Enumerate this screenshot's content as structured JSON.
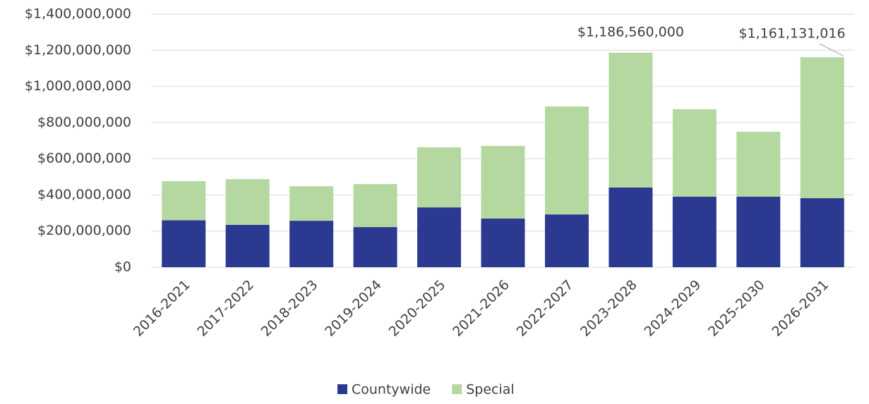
{
  "chart_data": {
    "type": "stacked_bar",
    "categories": [
      "2016-2021",
      "2017-2022",
      "2018-2023",
      "2019-2024",
      "2020-2025",
      "2021-2026",
      "2022-2027",
      "2023-2028",
      "2024-2029",
      "2025-2030",
      "2026-2031"
    ],
    "series": [
      {
        "name": "Countywide",
        "color": "#2b3990",
        "values": [
          260000000,
          234000000,
          257000000,
          222000000,
          331000000,
          269000000,
          292000000,
          441000000,
          390000000,
          390000000,
          382000000
        ]
      },
      {
        "name": "Special",
        "color": "#b5d8a0",
        "values": [
          216000000,
          253000000,
          191000000,
          238000000,
          332000000,
          402000000,
          597000000,
          745560000,
          484000000,
          359000000,
          779131016
        ]
      }
    ],
    "annotations": [
      {
        "category": "2023-2028",
        "text": "$1,186,560,000"
      },
      {
        "category": "2026-2031",
        "text": "$1,161,131,016"
      }
    ],
    "ylim": [
      0,
      1400000000
    ],
    "yticks": [
      {
        "value": 0,
        "label": "$0"
      },
      {
        "value": 200000000,
        "label": "$200,000,000"
      },
      {
        "value": 400000000,
        "label": "$400,000,000"
      },
      {
        "value": 600000000,
        "label": "$600,000,000"
      },
      {
        "value": 800000000,
        "label": "$800,000,000"
      },
      {
        "value": 1000000000,
        "label": "$1,000,000,000"
      },
      {
        "value": 1200000000,
        "label": "$1,200,000,000"
      },
      {
        "value": 1400000000,
        "label": "$1,400,000,000"
      }
    ],
    "grid": true,
    "legend": "bottom"
  }
}
